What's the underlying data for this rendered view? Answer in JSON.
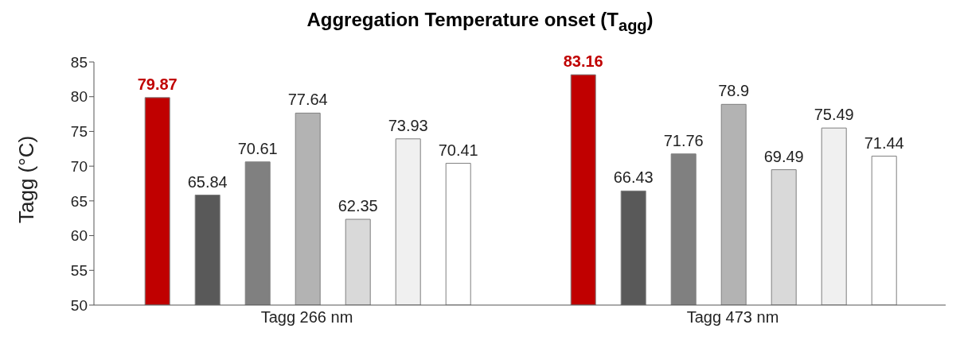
{
  "chart_data": {
    "type": "bar",
    "title": "Aggregation Temperature onset (T$_{agg}$)",
    "ylabel": "Tagg (°C)",
    "categories": [
      "Tagg 266 nm",
      "Tagg 473 nm"
    ],
    "series": [
      {
        "color": "#c00000",
        "values": [
          79.87,
          83.16
        ]
      },
      {
        "color": "#595959",
        "values": [
          65.84,
          66.43
        ]
      },
      {
        "color": "#808080",
        "values": [
          70.61,
          71.76
        ]
      },
      {
        "color": "#b3b3b3",
        "values": [
          77.64,
          78.9
        ]
      },
      {
        "color": "#d9d9d9",
        "values": [
          62.35,
          69.49
        ]
      },
      {
        "color": "#f0f0f0",
        "values": [
          73.93,
          75.49
        ]
      },
      {
        "color": "#ffffff",
        "values": [
          70.41,
          71.44
        ]
      }
    ],
    "ylim": [
      50,
      85
    ],
    "yticks": [
      50,
      55,
      60,
      65,
      70,
      75,
      80,
      85
    ],
    "grid": false,
    "legend": false,
    "data_labels": true
  }
}
